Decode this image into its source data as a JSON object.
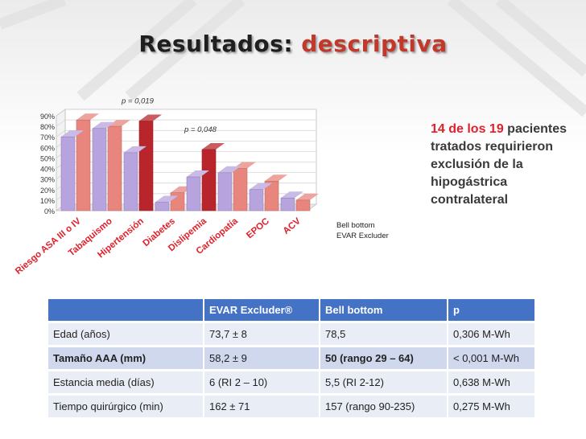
{
  "slide": {
    "title_part1": "Resultados:",
    "title_part2": "descriptiva"
  },
  "note": {
    "highlight": "14 de los 19",
    "text": "pacientes tratados requirieron exclusión de la hipogástrica contralateral"
  },
  "colors": {
    "bell_bottom": "#e8867d",
    "bell_bottom_significant": "#b8262c",
    "evar_excluder": "#b7a3de",
    "title_accent": "#c0392b"
  },
  "chart_data": {
    "type": "bar",
    "categories": [
      "Riesgo ASA III o IV",
      "Tabaquismo",
      "Hipertensión",
      "Diabetes",
      "Dislipemia",
      "Cardiopatía",
      "EPOC",
      "ACV"
    ],
    "series": [
      {
        "name": "EVAR Excluder",
        "values": [
          70,
          78,
          55,
          8,
          32,
          36,
          20,
          12
        ]
      },
      {
        "name": "Bell bottom",
        "values": [
          86,
          80,
          85,
          17,
          58,
          40,
          28,
          10
        ]
      }
    ],
    "significant_bell_bottom": [
      false,
      false,
      true,
      false,
      true,
      false,
      false,
      false
    ],
    "annotations": [
      {
        "text": "p = 0,019",
        "category": "Hipertensión"
      },
      {
        "text": "p = 0,048",
        "category": "Dislipemia"
      }
    ],
    "y_ticks": [
      "0%",
      "10%",
      "20%",
      "30%",
      "40%",
      "50%",
      "60%",
      "70%",
      "80%",
      "90%"
    ],
    "ylim": [
      0,
      90
    ],
    "legend_position": "right"
  },
  "table": {
    "headers": [
      "",
      "EVAR Excluder®",
      "Bell bottom",
      "p"
    ],
    "rows": [
      [
        "Edad (años)",
        "73,7 ± 8",
        "78,5",
        "0,306 M-Wh"
      ],
      [
        "Tamaño AAA (mm)",
        "58,2 ± 9",
        "50 (rango 29 – 64)",
        "< 0,001 M-Wh"
      ],
      [
        "Estancia media (días)",
        "6 (RI 2 – 10)",
        "5,5 (RI 2-12)",
        "0,638 M-Wh"
      ],
      [
        "Tiempo quirúrgico (min)",
        "162 ± 71",
        "157 (rango 90-235)",
        "0,275 M-Wh"
      ]
    ]
  }
}
